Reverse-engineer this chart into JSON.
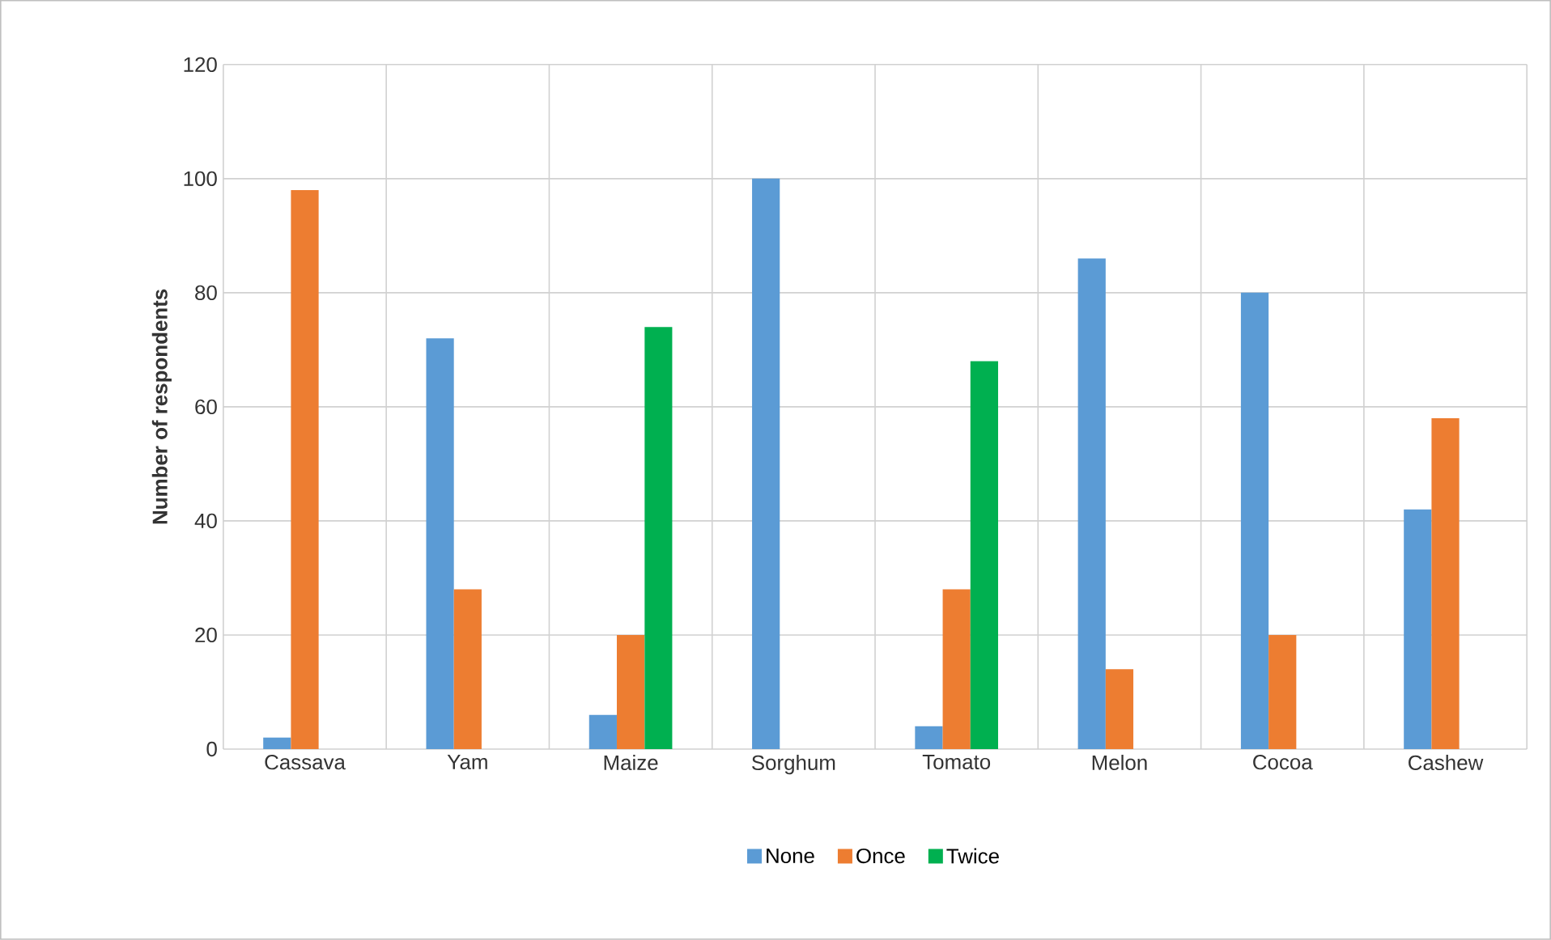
{
  "chart_data": {
    "type": "bar",
    "ylabel": "Number of respondents",
    "categories": [
      "Cassava",
      "Yam",
      "Maize",
      "Sorghum",
      "Tomato",
      "Melon",
      "Cocoa",
      "Cashew"
    ],
    "series": [
      {
        "name": "None",
        "color": "#5b9bd5",
        "values": [
          2,
          72,
          6,
          100,
          4,
          86,
          80,
          42
        ]
      },
      {
        "name": "Once",
        "color": "#ed7d31",
        "values": [
          98,
          28,
          20,
          null,
          28,
          14,
          20,
          58
        ]
      },
      {
        "name": "Twice",
        "color": "#00b050",
        "values": [
          null,
          null,
          74,
          null,
          68,
          null,
          null,
          null
        ]
      }
    ],
    "ylim": [
      0,
      120
    ],
    "yticks": [
      0,
      20,
      40,
      60,
      80,
      100,
      120
    ],
    "grid": true,
    "legend": "bottom"
  }
}
